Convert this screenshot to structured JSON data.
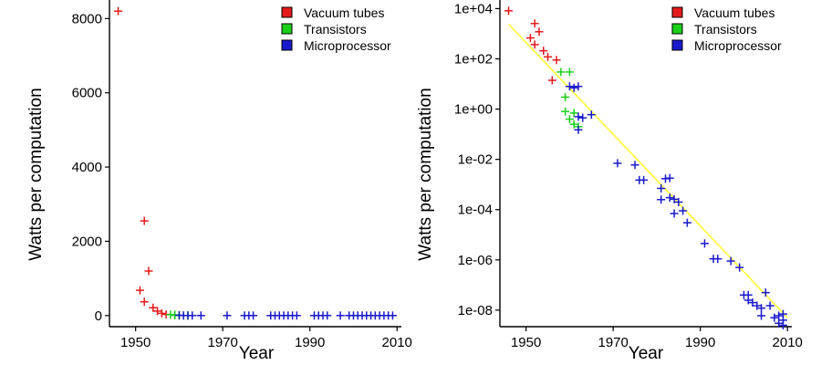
{
  "chart_data": [
    {
      "type": "scatter",
      "title": "",
      "xlabel": "Year",
      "ylabel": "Watts per computation",
      "xlim": [
        1944,
        2011
      ],
      "ylim": [
        -300,
        8500
      ],
      "yscale": "linear",
      "x_ticks": [
        1950,
        1970,
        1990,
        2010
      ],
      "y_ticks": [
        0,
        2000,
        4000,
        6000,
        8000
      ],
      "y_tick_labels": [
        "0",
        "2000",
        "4000",
        "6000",
        "8000"
      ],
      "legend": "top-right",
      "series": [
        {
          "name": "Vacuum tubes",
          "color": "#e41a1c",
          "marker": "plus",
          "points": [
            [
              1946,
              8200
            ],
            [
              1951,
              680
            ],
            [
              1952,
              2550
            ],
            [
              1952,
              370
            ],
            [
              1953,
              1200
            ],
            [
              1954,
              210
            ],
            [
              1955,
              120
            ],
            [
              1956,
              60
            ],
            [
              1957,
              30
            ]
          ]
        },
        {
          "name": "Transistors",
          "color": "#1bd01b",
          "marker": "plus",
          "points": [
            [
              1958,
              25
            ],
            [
              1959,
              18
            ],
            [
              1959,
              5
            ],
            [
              1960,
              3
            ],
            [
              1960,
              1
            ],
            [
              1961,
              2
            ],
            [
              1962,
              0.3
            ],
            [
              1962,
              0.6
            ]
          ]
        },
        {
          "name": "Microprocessor",
          "color": "#1a1acc",
          "marker": "plus",
          "points": [
            [
              1960,
              8
            ],
            [
              1961,
              0.8
            ],
            [
              1962,
              0.4
            ],
            [
              1963,
              0.5
            ],
            [
              1965,
              0.6
            ],
            [
              1971,
              0.008
            ],
            [
              1975,
              0.005
            ],
            [
              1976,
              0.002
            ],
            [
              1977,
              0.001
            ],
            [
              1981,
              0.0006
            ],
            [
              1982,
              0.0002
            ],
            [
              1983,
              0.002
            ],
            [
              1984,
              0.0003
            ],
            [
              1985,
              0.0001
            ],
            [
              1986,
              5e-05
            ],
            [
              1987,
              3e-05
            ],
            [
              1991,
              1e-05
            ],
            [
              1992,
              5e-06
            ],
            [
              1993,
              2e-06
            ],
            [
              1994,
              1e-06
            ],
            [
              1997,
              8e-07
            ],
            [
              1999,
              5e-07
            ],
            [
              2000,
              3e-07
            ],
            [
              2001,
              1e-07
            ],
            [
              2002,
              5e-08
            ],
            [
              2003,
              2e-08
            ],
            [
              2004,
              5e-08
            ],
            [
              2005,
              3e-08
            ],
            [
              2006,
              1e-08
            ],
            [
              2007,
              2e-08
            ],
            [
              2008,
              1e-08
            ],
            [
              2009,
              3e-08
            ]
          ]
        }
      ]
    },
    {
      "type": "scatter",
      "title": "",
      "xlabel": "Year",
      "ylabel": "Watts per computation",
      "xlim": [
        1944,
        2011
      ],
      "ylim": [
        2.2e-09,
        22000.0
      ],
      "yscale": "log",
      "x_ticks": [
        1950,
        1970,
        1990,
        2010
      ],
      "y_ticks": [
        10000.0,
        100.0,
        1,
        0.01,
        0.0001,
        1e-06,
        1e-08
      ],
      "y_tick_labels": [
        "1e+04",
        "1e+02",
        "1e+00",
        "1e-02",
        "1e-04",
        "1e-06",
        "1e-08"
      ],
      "legend": "top-right",
      "trend_line": {
        "color": "#ffff33",
        "points": [
          [
            1946,
            2400
          ],
          [
            2010,
            5e-09
          ]
        ]
      },
      "series": [
        {
          "name": "Vacuum tubes",
          "color": "#e41a1c",
          "marker": "plus",
          "points": [
            [
              1946,
              8200
            ],
            [
              1951,
              680
            ],
            [
              1952,
              2550
            ],
            [
              1952,
              370
            ],
            [
              1953,
              1200
            ],
            [
              1954,
              210
            ],
            [
              1955,
              120
            ],
            [
              1956,
              14
            ],
            [
              1957,
              90
            ]
          ]
        },
        {
          "name": "Transistors",
          "color": "#1bd01b",
          "marker": "plus",
          "points": [
            [
              1958,
              30
            ],
            [
              1959,
              3
            ],
            [
              1959,
              0.8
            ],
            [
              1960,
              30
            ],
            [
              1960,
              0.4
            ],
            [
              1961,
              0.7
            ],
            [
              1961,
              0.25
            ],
            [
              1962,
              0.2
            ]
          ]
        },
        {
          "name": "Microprocessor",
          "color": "#1a1acc",
          "marker": "plus",
          "points": [
            [
              1960,
              8
            ],
            [
              1961,
              7
            ],
            [
              1962,
              8
            ],
            [
              1962,
              0.5
            ],
            [
              1963,
              0.45
            ],
            [
              1962,
              0.15
            ],
            [
              1965,
              0.6
            ],
            [
              1971,
              0.007
            ],
            [
              1975,
              0.006
            ],
            [
              1976,
              0.0015
            ],
            [
              1977,
              0.0015
            ],
            [
              1981,
              0.0007
            ],
            [
              1981,
              0.00025
            ],
            [
              1982,
              0.0017
            ],
            [
              1983,
              0.0018
            ],
            [
              1983,
              0.0003
            ],
            [
              1984,
              0.00026
            ],
            [
              1984,
              7e-05
            ],
            [
              1985,
              0.0002
            ],
            [
              1986,
              9e-05
            ],
            [
              1987,
              3e-05
            ],
            [
              1991,
              4.5e-06
            ],
            [
              1993,
              1.1e-06
            ],
            [
              1994,
              1.1e-06
            ],
            [
              1997,
              9e-07
            ],
            [
              1999,
              5e-07
            ],
            [
              2000,
              4e-08
            ],
            [
              2001,
              4e-08
            ],
            [
              2001,
              2.5e-08
            ],
            [
              2002,
              2e-08
            ],
            [
              2003,
              1.5e-08
            ],
            [
              2004,
              1.2e-08
            ],
            [
              2004,
              6e-09
            ],
            [
              2005,
              5e-08
            ],
            [
              2006,
              1.5e-08
            ],
            [
              2007,
              5e-09
            ],
            [
              2008,
              3e-09
            ],
            [
              2008,
              6e-09
            ],
            [
              2009,
              4e-09
            ],
            [
              2009,
              7e-09
            ],
            [
              2009,
              2.5e-09
            ]
          ]
        }
      ]
    }
  ]
}
